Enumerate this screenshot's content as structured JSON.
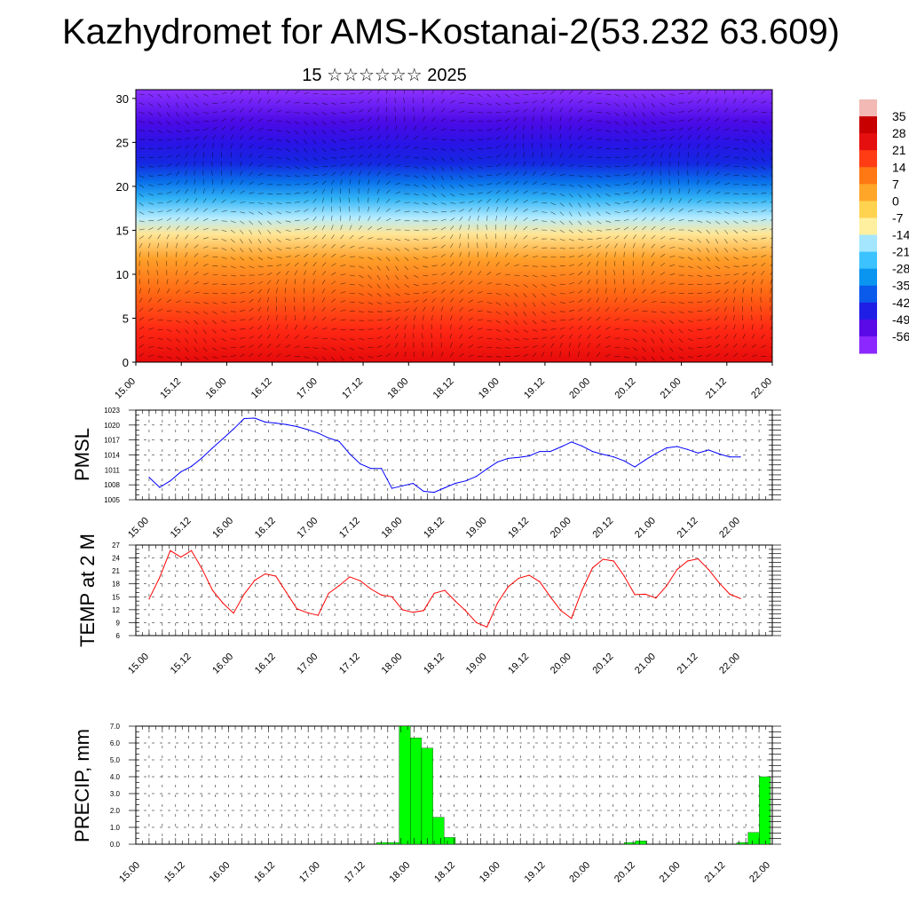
{
  "title": "Kazhydromet for AMS-Kostanai-2(53.232 63.609)",
  "subtitle": "15 ☆☆☆☆☆☆ 2025",
  "time_labels": [
    "15.00",
    "15.12",
    "16.00",
    "16.12",
    "17.00",
    "17.12",
    "18.00",
    "18.12",
    "19.00",
    "19.12",
    "20.00",
    "20.12",
    "21.00",
    "21.12",
    "22.00"
  ],
  "colors": {
    "pmsl_line": "#0000ff",
    "temp_line": "#ff0000",
    "precip_bar": "#00ff00"
  },
  "chart_data": [
    {
      "type": "heatmap",
      "name": "vertical-section",
      "ylim": [
        0,
        31
      ],
      "y_ticks": [
        0,
        5,
        10,
        15,
        20,
        25,
        30
      ],
      "colorbar_labels": [
        "35",
        "28",
        "21",
        "14",
        "7",
        "0",
        "-7",
        "-14",
        "-21",
        "-28",
        "-35",
        "-42",
        "-49",
        "-56"
      ],
      "colorbar_colors": [
        "#f2b9b5",
        "#c80000",
        "#e60f0f",
        "#ff3c14",
        "#ff7814",
        "#ffa528",
        "#ffd250",
        "#fff0a0",
        "#a5e6ff",
        "#3cc3ff",
        "#0a96f0",
        "#0a5aeb",
        "#1e1ee6",
        "#5a0ae6",
        "#8c28ff"
      ]
    },
    {
      "type": "line",
      "name": "PMSL",
      "ylabel": "PMSL",
      "ylim": [
        1005,
        1023
      ],
      "y_ticks": [
        1005,
        1008,
        1011,
        1014,
        1017,
        1020,
        1023
      ],
      "x_hours": [
        0,
        3,
        6,
        9,
        12,
        15,
        18,
        21,
        24,
        27,
        30,
        33,
        36,
        39,
        42,
        45,
        48,
        51,
        54,
        57,
        60,
        63,
        66,
        69,
        72,
        75,
        78,
        81,
        84,
        87,
        90,
        93,
        96,
        99,
        102,
        105,
        108,
        111,
        114,
        117,
        120,
        123,
        126,
        129,
        132,
        135,
        138,
        141,
        144,
        147,
        150,
        153,
        156,
        159,
        162,
        165,
        168
      ],
      "values": [
        1009.5,
        1007.5,
        1008.8,
        1010.6,
        1011.7,
        1013.4,
        1015.4,
        1017.3,
        1019.2,
        1021.3,
        1021.4,
        1020.6,
        1020.4,
        1020.1,
        1019.7,
        1019.1,
        1018.4,
        1017.4,
        1016.7,
        1014.2,
        1012.2,
        1011.3,
        1011.3,
        1007.3,
        1007.8,
        1008.3,
        1006.7,
        1006.5,
        1007.4,
        1008.3,
        1008.8,
        1009.7,
        1011.2,
        1012.6,
        1013.3,
        1013.5,
        1013.8,
        1014.7,
        1014.7,
        1015.6,
        1016.6,
        1015.8,
        1014.7,
        1014.1,
        1013.6,
        1012.8,
        1011.6,
        1013.0,
        1014.3,
        1015.4,
        1015.7,
        1015.1,
        1014.4,
        1015.0,
        1014.2,
        1013.6,
        1013.6
      ]
    },
    {
      "type": "line",
      "name": "TEMP",
      "ylabel": "TEMP at 2 M",
      "ylim": [
        6,
        27
      ],
      "y_ticks": [
        6,
        9,
        12,
        15,
        18,
        21,
        24,
        27
      ],
      "x_hours": [
        0,
        3,
        6,
        9,
        12,
        15,
        18,
        21,
        24,
        27,
        30,
        33,
        36,
        39,
        42,
        45,
        48,
        51,
        54,
        57,
        60,
        63,
        66,
        69,
        72,
        75,
        78,
        81,
        84,
        87,
        90,
        93,
        96,
        99,
        102,
        105,
        108,
        111,
        114,
        117,
        120,
        123,
        126,
        129,
        132,
        135,
        138,
        141,
        144,
        147,
        150,
        153,
        156,
        159,
        162,
        165,
        168
      ],
      "values": [
        14.5,
        19.5,
        25.7,
        24.2,
        25.7,
        21.5,
        16.5,
        13.5,
        11.2,
        15.6,
        18.8,
        20.3,
        19.8,
        16.0,
        12.2,
        11.3,
        10.7,
        15.8,
        17.6,
        19.6,
        18.7,
        16.8,
        15.4,
        15.0,
        12.0,
        11.4,
        11.8,
        15.8,
        16.5,
        14.0,
        11.7,
        9.0,
        8.0,
        13.6,
        17.3,
        19.3,
        20.0,
        18.5,
        15.0,
        11.8,
        10.0,
        16.5,
        21.7,
        23.7,
        23.3,
        19.8,
        15.5,
        15.6,
        14.7,
        17.5,
        21.3,
        23.3,
        23.8,
        21.3,
        18.2,
        15.6,
        14.6
      ]
    },
    {
      "type": "bar",
      "name": "PRECIP",
      "ylabel": "PRECIP, mm",
      "ylim": [
        0,
        7
      ],
      "y_ticks": [
        "0.0",
        "1.0",
        "2.0",
        "3.0",
        "4.0",
        "5.0",
        "6.0",
        "7.0"
      ],
      "x_hours": [
        66,
        69,
        72,
        75,
        78,
        81,
        84,
        87,
        132,
        135,
        162,
        165,
        168
      ],
      "values": [
        0.1,
        0.1,
        7.0,
        6.3,
        5.7,
        1.6,
        0.4,
        0.0,
        0.1,
        0.2,
        0.1,
        0.7,
        4.0
      ]
    }
  ]
}
